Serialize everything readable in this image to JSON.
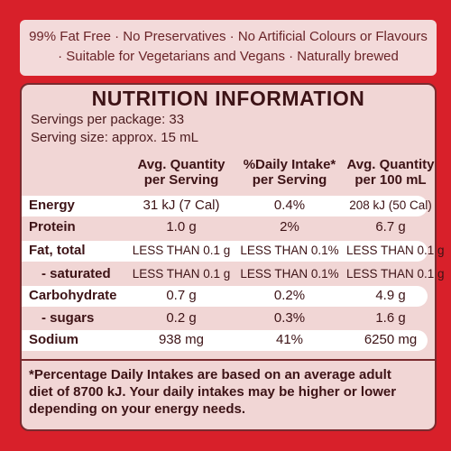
{
  "claims": {
    "line1": "99% Fat Free · No Preservatives · No Artificial Colours or Flavours",
    "line2": "· Suitable for Vegetarians and Vegans · Naturally brewed"
  },
  "nutrition": {
    "title": "NUTRITION INFORMATION",
    "servings_per_package": "Servings per package: 33",
    "serving_size": "Serving size: approx. 15 mL",
    "headers": {
      "col1": [
        "Avg. Quantity",
        "per Serving"
      ],
      "col2": [
        "%Daily Intake*",
        "per Serving"
      ],
      "col3": [
        "Avg. Quantity",
        "per 100 mL"
      ]
    },
    "rows": [
      {
        "name": "Energy",
        "per_serving": "31 kJ (7 Cal)",
        "daily_intake": "0.4%",
        "per_100ml": "208 kJ (50 Cal)"
      },
      {
        "name": "Protein",
        "per_serving": "1.0 g",
        "daily_intake": "2%",
        "per_100ml": "6.7 g"
      },
      {
        "name": "Fat, total",
        "per_serving": "LESS THAN 0.1 g",
        "daily_intake": "LESS THAN 0.1%",
        "per_100ml": "LESS THAN 0.1 g"
      },
      {
        "name": "- saturated",
        "per_serving": "LESS THAN 0.1 g",
        "daily_intake": "LESS THAN 0.1%",
        "per_100ml": "LESS THAN 0.1 g"
      },
      {
        "name": "Carbohydrate",
        "per_serving": "0.7 g",
        "daily_intake": "0.2%",
        "per_100ml": "4.9 g"
      },
      {
        "name": "- sugars",
        "per_serving": "0.2 g",
        "daily_intake": "0.3%",
        "per_100ml": "1.6 g"
      },
      {
        "name": "Sodium",
        "per_serving": "938 mg",
        "daily_intake": "41%",
        "per_100ml": "6250 mg"
      }
    ],
    "footnote": [
      "*Percentage Daily Intakes are based on an average adult",
      "diet of 8700 kJ. Your daily intakes may be higher or lower",
      "depending on your energy needs."
    ]
  },
  "colors": {
    "background_red": "#d8202a",
    "panel_pink": "#f1d6d5",
    "text_dark": "#3d1316"
  }
}
